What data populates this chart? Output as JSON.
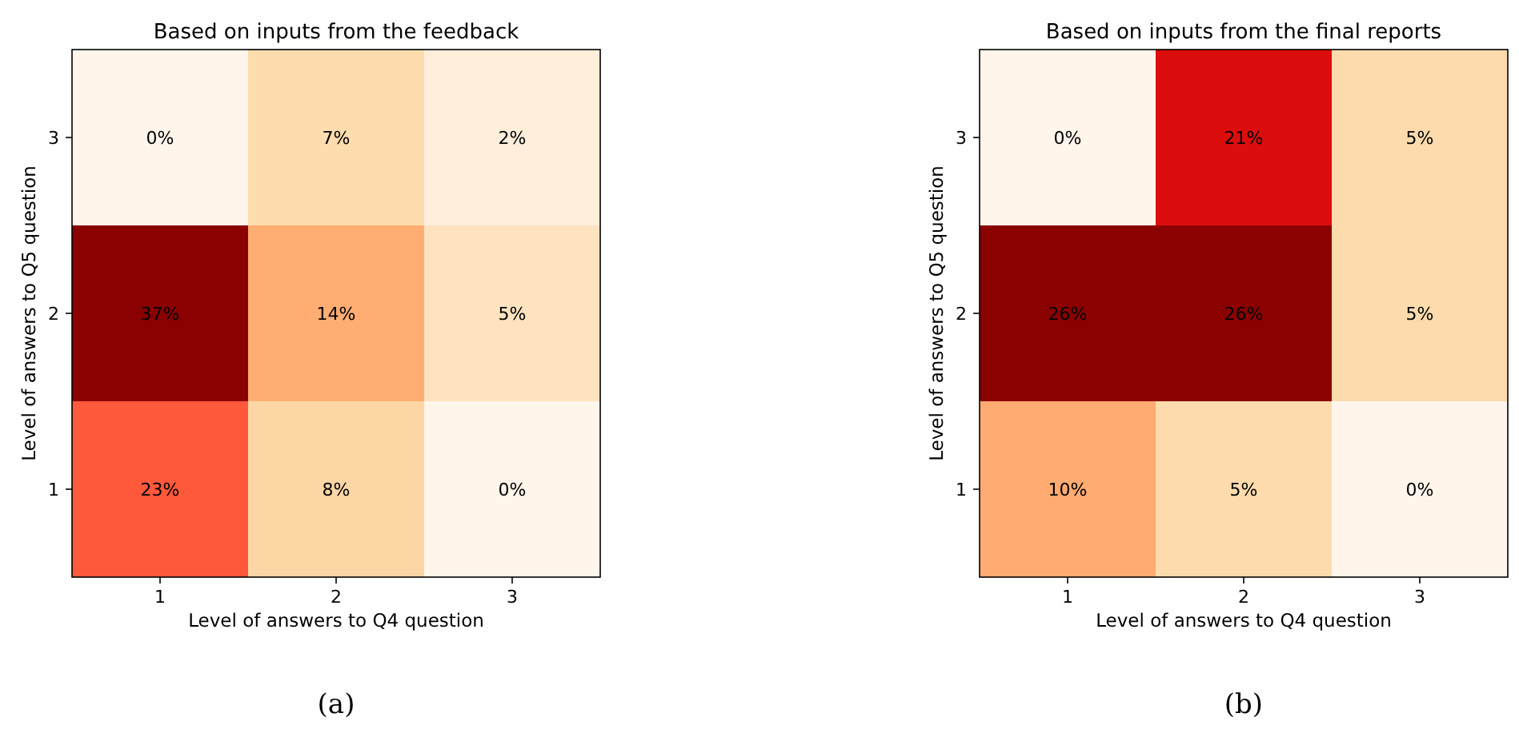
{
  "chart_data": [
    {
      "type": "heatmap",
      "title": "Based on inputs from the feedback",
      "xlabel": "Level of answers to Q4 question",
      "ylabel": "Level of answers to Q5 question",
      "categories": [
        "1",
        "2",
        "3"
      ],
      "y_categories": [
        "3",
        "2",
        "1"
      ],
      "cells": [
        [
          0,
          7,
          2
        ],
        [
          37,
          14,
          5
        ],
        [
          23,
          8,
          0
        ]
      ],
      "cell_labels": [
        [
          "0%",
          "7%",
          "2%"
        ],
        [
          "37%",
          "14%",
          "5%"
        ],
        [
          "23%",
          "8%",
          "0%"
        ]
      ],
      "annotations": [
        "(a)"
      ]
    },
    {
      "type": "heatmap",
      "title": "Based on inputs from the final reports",
      "xlabel": "Level of answers to Q4 question",
      "ylabel": "Level of answers to Q5 question",
      "categories": [
        "1",
        "2",
        "3"
      ],
      "y_categories": [
        "3",
        "2",
        "1"
      ],
      "cells": [
        [
          0,
          21,
          5
        ],
        [
          26,
          26,
          5
        ],
        [
          10,
          5,
          0
        ]
      ],
      "cell_labels": [
        [
          "0%",
          "21%",
          "5%"
        ],
        [
          "26%",
          "26%",
          "5%"
        ],
        [
          "10%",
          "5%",
          "0%"
        ]
      ],
      "annotations": [
        "(b)"
      ]
    }
  ]
}
